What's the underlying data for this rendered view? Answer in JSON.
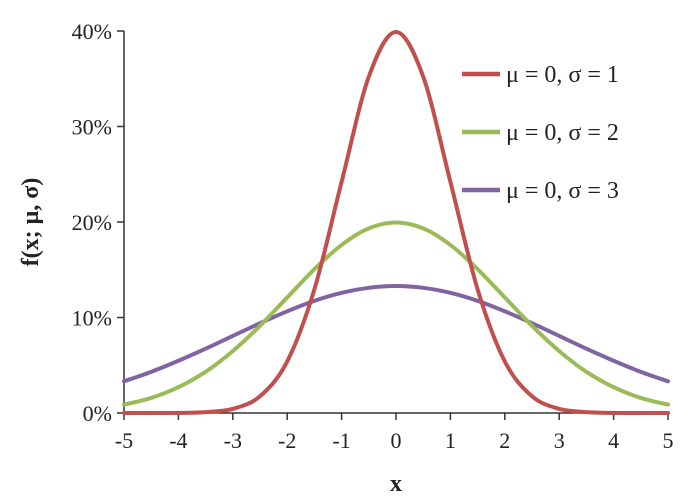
{
  "chart_data": {
    "type": "line",
    "title": "",
    "xlabel": "x",
    "ylabel": "f(x; μ, σ)",
    "xlim": [
      -5,
      5
    ],
    "ylim": [
      0,
      0.4
    ],
    "x_ticks": [
      -5,
      -4,
      -3,
      -2,
      -1,
      0,
      1,
      2,
      3,
      4,
      5
    ],
    "x_tick_labels": [
      "-5",
      "-4",
      "-3",
      "-2",
      "-1",
      "0",
      "1",
      "2",
      "3",
      "4",
      "5"
    ],
    "y_ticks": [
      0,
      0.1,
      0.2,
      0.3,
      0.4
    ],
    "y_tick_labels": [
      "0%",
      "10%",
      "20%",
      "30%",
      "40%"
    ],
    "grid": false,
    "legend_position": "top-right",
    "x": [
      -5,
      -4.5,
      -4,
      -3.5,
      -3,
      -2.5,
      -2,
      -1.5,
      -1,
      -0.5,
      0,
      0.5,
      1,
      1.5,
      2,
      2.5,
      3,
      3.5,
      4,
      4.5,
      5
    ],
    "series": [
      {
        "name": "μ = 0, σ = 1",
        "color": "#c0504d",
        "values": [
          0.0,
          0.0,
          0.0001,
          0.0009,
          0.0044,
          0.0175,
          0.054,
          0.1295,
          0.242,
          0.3521,
          0.3989,
          0.3521,
          0.242,
          0.1295,
          0.054,
          0.0175,
          0.0044,
          0.0009,
          0.0001,
          0.0,
          0.0
        ]
      },
      {
        "name": "μ = 0, σ = 2",
        "color": "#9bbb59",
        "values": [
          0.0088,
          0.0158,
          0.027,
          0.0431,
          0.0648,
          0.0913,
          0.121,
          0.1506,
          0.176,
          0.1933,
          0.1995,
          0.1933,
          0.176,
          0.1506,
          0.121,
          0.0913,
          0.0648,
          0.0431,
          0.027,
          0.0158,
          0.0088
        ]
      },
      {
        "name": "μ = 0, σ = 3",
        "color": "#8064a2",
        "values": [
          0.0332,
          0.0431,
          0.0547,
          0.0673,
          0.0807,
          0.094,
          0.1065,
          0.1174,
          0.1258,
          0.1311,
          0.133,
          0.1311,
          0.1258,
          0.1174,
          0.1065,
          0.094,
          0.0807,
          0.0673,
          0.0547,
          0.0431,
          0.0332
        ]
      }
    ]
  }
}
